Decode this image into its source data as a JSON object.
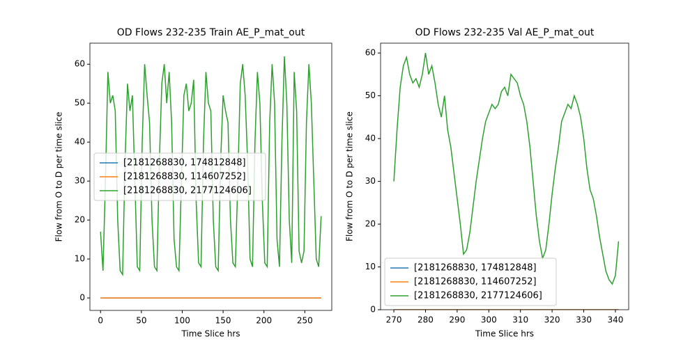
{
  "chart_data": [
    {
      "type": "line",
      "title": "OD Flows 232-235  Train AE_P_mat_out",
      "xlabel": "Time Slice hrs",
      "ylabel": "Flow from O to D per time slice",
      "xlim": [
        -13,
        283
      ],
      "ylim": [
        -3.2,
        65.4
      ],
      "xticks": [
        0,
        50,
        100,
        150,
        200,
        250
      ],
      "yticks": [
        0,
        10,
        20,
        30,
        40,
        50,
        60
      ],
      "legend": "center left",
      "series": [
        {
          "name": "[2181268830, 174812848]",
          "color": "#1f77b4",
          "x": [
            0,
            270
          ],
          "values": [
            0,
            0
          ]
        },
        {
          "name": "[2181268830, 114607252]",
          "color": "#ff7f0e",
          "x": [
            0,
            270
          ],
          "values": [
            0,
            0
          ]
        },
        {
          "name": "[2181268830, 2177124606]",
          "color": "#2ca02c",
          "x": [
            0,
            3,
            6,
            9,
            12,
            15,
            18,
            21,
            24,
            27,
            30,
            33,
            36,
            39,
            42,
            45,
            48,
            51,
            54,
            57,
            60,
            63,
            66,
            69,
            72,
            75,
            78,
            81,
            84,
            87,
            90,
            93,
            96,
            99,
            102,
            105,
            108,
            111,
            114,
            117,
            120,
            123,
            126,
            129,
            132,
            135,
            138,
            141,
            144,
            147,
            150,
            153,
            156,
            159,
            162,
            165,
            168,
            171,
            174,
            177,
            180,
            183,
            186,
            189,
            192,
            195,
            198,
            201,
            204,
            207,
            210,
            213,
            216,
            219,
            222,
            225,
            228,
            231,
            234,
            237,
            240,
            243,
            246,
            249,
            252,
            255,
            258,
            261,
            264,
            267,
            270
          ],
          "values": [
            17,
            7,
            30,
            58,
            50,
            52,
            48,
            20,
            7,
            6,
            35,
            55,
            48,
            52,
            30,
            8,
            7,
            40,
            60,
            52,
            45,
            20,
            8,
            7,
            35,
            55,
            60,
            50,
            58,
            45,
            15,
            8,
            7,
            30,
            52,
            55,
            48,
            50,
            56,
            25,
            9,
            8,
            40,
            58,
            50,
            48,
            20,
            8,
            7,
            35,
            52,
            48,
            45,
            20,
            9,
            8,
            30,
            55,
            60,
            52,
            35,
            10,
            8,
            40,
            58,
            50,
            25,
            9,
            8,
            45,
            60,
            50,
            15,
            8,
            40,
            62,
            50,
            20,
            9,
            58,
            48,
            12,
            9,
            12,
            45,
            60,
            50,
            30,
            10,
            8,
            21
          ]
        }
      ]
    },
    {
      "type": "line",
      "title": "OD Flows 232-235 Val AE_P_mat_out",
      "xlabel": "Time Slice hrs",
      "ylabel": "Flow from O to D per time slice",
      "xlim": [
        265.8,
        344.2
      ],
      "ylim": [
        0,
        62.3
      ],
      "xticks": [
        270,
        280,
        290,
        300,
        310,
        320,
        330,
        340
      ],
      "yticks": [
        0,
        10,
        20,
        30,
        40,
        50,
        60
      ],
      "legend": "lower left",
      "series": [
        {
          "name": "[2181268830, 174812848]",
          "color": "#1f77b4",
          "x": [
            270,
            341
          ],
          "values": [
            0,
            0
          ]
        },
        {
          "name": "[2181268830, 114607252]",
          "color": "#ff7f0e",
          "x": [
            270,
            341
          ],
          "values": [
            0,
            0
          ]
        },
        {
          "name": "[2181268830, 2177124606]",
          "color": "#2ca02c",
          "x": [
            270,
            271,
            272,
            273,
            274,
            275,
            276,
            277,
            278,
            279,
            280,
            281,
            282,
            283,
            284,
            285,
            286,
            287,
            288,
            289,
            290,
            291,
            292,
            293,
            294,
            295,
            296,
            297,
            298,
            299,
            300,
            301,
            302,
            303,
            304,
            305,
            306,
            307,
            308,
            309,
            310,
            311,
            312,
            313,
            314,
            315,
            316,
            317,
            318,
            319,
            320,
            321,
            322,
            323,
            324,
            325,
            326,
            327,
            328,
            329,
            330,
            331,
            332,
            333,
            334,
            335,
            336,
            337,
            338,
            339,
            340,
            341
          ],
          "values": [
            30,
            42,
            52,
            57,
            59,
            55,
            53,
            54,
            52,
            55,
            60,
            55,
            57,
            53,
            48,
            45,
            50,
            42,
            38,
            32,
            26,
            20,
            13,
            14,
            18,
            24,
            30,
            35,
            40,
            44,
            46,
            48,
            47,
            48,
            51,
            52,
            50,
            55,
            54,
            53,
            50,
            48,
            44,
            38,
            30,
            22,
            16,
            12,
            14,
            20,
            27,
            33,
            38,
            44,
            46,
            48,
            47,
            50,
            48,
            45,
            40,
            33,
            28,
            26,
            22,
            17,
            13,
            9,
            7,
            6,
            8,
            16
          ]
        }
      ]
    }
  ]
}
